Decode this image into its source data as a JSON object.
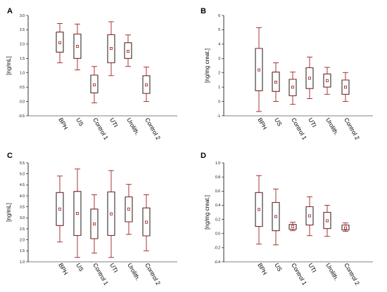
{
  "colors": {
    "whisker": "#a02020",
    "box": "#000000",
    "axis": "#000000",
    "median_marker": "#a02020"
  },
  "chart_data": [
    {
      "type": "box",
      "panel": "A",
      "ylabel": "[ng/mL]",
      "ylim": [
        -0.5,
        3.0
      ],
      "yticks": [
        -0.5,
        0.0,
        0.5,
        1.0,
        1.5,
        2.0,
        2.5,
        3.0
      ],
      "tick_labels": [
        "-0.5",
        "0.0",
        "0.5",
        "1.0",
        "1.5",
        "2.0",
        "2.5",
        "3.0"
      ],
      "categories": [
        "BPH",
        "US",
        "Control 1",
        "UTI",
        "Urolith.",
        "Control 2"
      ],
      "boxes": [
        {
          "whisker_low": 1.35,
          "q1": 1.72,
          "median": 2.05,
          "q3": 2.42,
          "whisker_high": 2.72
        },
        {
          "whisker_low": 1.1,
          "q1": 1.5,
          "median": 1.92,
          "q3": 2.35,
          "whisker_high": 2.7
        },
        {
          "whisker_low": -0.05,
          "q1": 0.3,
          "median": 0.58,
          "q3": 0.92,
          "whisker_high": 1.22
        },
        {
          "whisker_low": 0.9,
          "q1": 1.35,
          "median": 1.85,
          "q3": 2.33,
          "whisker_high": 2.78
        },
        {
          "whisker_low": 1.22,
          "q1": 1.5,
          "median": 1.75,
          "q3": 2.05,
          "whisker_high": 2.32
        },
        {
          "whisker_low": 0.0,
          "q1": 0.28,
          "median": 0.58,
          "q3": 0.9,
          "whisker_high": 1.2
        }
      ]
    },
    {
      "type": "box",
      "panel": "B",
      "ylabel": "[ng/mg creat.]",
      "ylim": [
        -1,
        6
      ],
      "yticks": [
        -1,
        0,
        1,
        2,
        3,
        4,
        5,
        6
      ],
      "tick_labels": [
        "-1",
        "0",
        "1",
        "2",
        "3",
        "4",
        "5",
        "6"
      ],
      "categories": [
        "BPH",
        "US",
        "Control 1",
        "UTI",
        "Urolith.",
        "Control 2"
      ],
      "boxes": [
        {
          "whisker_low": -0.7,
          "q1": 0.75,
          "median": 2.2,
          "q3": 3.7,
          "whisker_high": 5.15
        },
        {
          "whisker_low": 0.0,
          "q1": 0.7,
          "median": 1.35,
          "q3": 2.05,
          "whisker_high": 2.7
        },
        {
          "whisker_low": -0.2,
          "q1": 0.4,
          "median": 1.0,
          "q3": 1.55,
          "whisker_high": 2.05
        },
        {
          "whisker_low": 0.2,
          "q1": 0.9,
          "median": 1.62,
          "q3": 2.35,
          "whisker_high": 3.1
        },
        {
          "whisker_low": 0.5,
          "q1": 1.0,
          "median": 1.45,
          "q3": 1.92,
          "whisker_high": 2.38
        },
        {
          "whisker_low": 0.0,
          "q1": 0.5,
          "median": 1.0,
          "q3": 1.5,
          "whisker_high": 2.02
        }
      ]
    },
    {
      "type": "box",
      "panel": "C",
      "ylabel": "[ng/mL]",
      "ylim": [
        1.0,
        5.5
      ],
      "yticks": [
        1.0,
        1.5,
        2.0,
        2.5,
        3.0,
        3.5,
        4.0,
        4.5,
        5.0,
        5.5
      ],
      "tick_labels": [
        "1.0",
        "1.5",
        "2.0",
        "2.5",
        "3.0",
        "3.5",
        "4.0",
        "4.5",
        "5.0",
        "5.5"
      ],
      "categories": [
        "BPH",
        "US",
        "Control 1",
        "UTI",
        "Urolith.",
        "Control 2"
      ],
      "boxes": [
        {
          "whisker_low": 1.9,
          "q1": 2.65,
          "median": 3.4,
          "q3": 4.15,
          "whisker_high": 4.9
        },
        {
          "whisker_low": 1.2,
          "q1": 2.2,
          "median": 3.2,
          "q3": 4.2,
          "whisker_high": 5.22
        },
        {
          "whisker_low": 1.4,
          "q1": 2.05,
          "median": 2.72,
          "q3": 3.4,
          "whisker_high": 4.05
        },
        {
          "whisker_low": 1.2,
          "q1": 2.2,
          "median": 3.18,
          "q3": 4.18,
          "whisker_high": 5.15
        },
        {
          "whisker_low": 2.25,
          "q1": 2.82,
          "median": 3.4,
          "q3": 3.95,
          "whisker_high": 4.52
        },
        {
          "whisker_low": 1.5,
          "q1": 2.18,
          "median": 2.8,
          "q3": 3.45,
          "whisker_high": 4.05
        }
      ]
    },
    {
      "type": "box",
      "panel": "D",
      "ylabel": "[ng/mg creat.]",
      "ylim": [
        -0.4,
        1.0
      ],
      "yticks": [
        -0.4,
        -0.2,
        0.0,
        0.2,
        0.4,
        0.6,
        0.8,
        1.0
      ],
      "tick_labels": [
        "-0.4",
        "-0.2",
        "0.0",
        "0.2",
        "0.4",
        "0.6",
        "0.8",
        "1.0"
      ],
      "categories": [
        "BPH",
        "US",
        "Control 1",
        "UTI",
        "Urolith.",
        "Control 2"
      ],
      "boxes": [
        {
          "whisker_low": -0.15,
          "q1": 0.1,
          "median": 0.34,
          "q3": 0.58,
          "whisker_high": 0.82
        },
        {
          "whisker_low": -0.16,
          "q1": 0.04,
          "median": 0.24,
          "q3": 0.44,
          "whisker_high": 0.63
        },
        {
          "whisker_low": 0.04,
          "q1": 0.06,
          "median": 0.1,
          "q3": 0.13,
          "whisker_high": 0.16
        },
        {
          "whisker_low": -0.03,
          "q1": 0.12,
          "median": 0.25,
          "q3": 0.38,
          "whisker_high": 0.52
        },
        {
          "whisker_low": -0.04,
          "q1": 0.07,
          "median": 0.18,
          "q3": 0.3,
          "whisker_high": 0.4
        },
        {
          "whisker_low": 0.03,
          "q1": 0.05,
          "median": 0.08,
          "q3": 0.12,
          "whisker_high": 0.15
        }
      ]
    }
  ]
}
